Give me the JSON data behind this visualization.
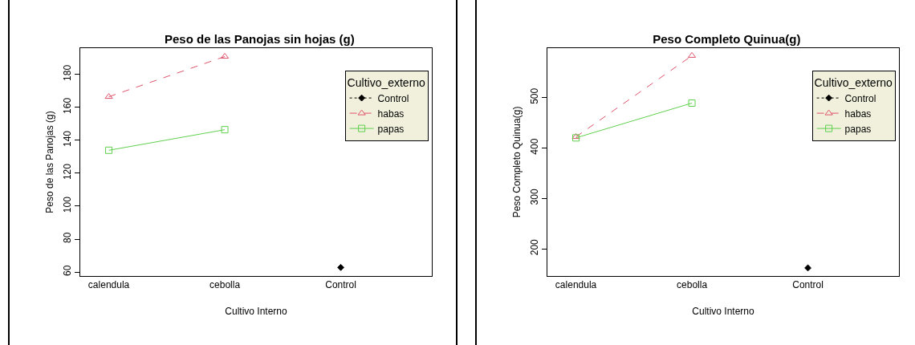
{
  "chart_data": [
    {
      "type": "line",
      "title": "Peso de las Panojas sin hojas (g)",
      "xlabel": "Cultivo Interno",
      "ylabel": "Peso de las Panojas (g)",
      "legend_title": "Cultivo_externo",
      "categories": [
        "calendula",
        "cebolla",
        "Control"
      ],
      "ylim": [
        57.6,
        195.9
      ],
      "yticks": [
        60,
        80,
        100,
        120,
        140,
        160,
        180
      ],
      "grid": false,
      "legend": "top right",
      "series": [
        {
          "name": "Control",
          "color": "#000000",
          "marker": "diamond",
          "line_style": "dotted",
          "values": [
            null,
            null,
            62.8
          ]
        },
        {
          "name": "habas",
          "color": "#df536b",
          "marker": "triangle",
          "line_style": "dashed",
          "values": [
            166.4,
            190.8,
            null
          ]
        },
        {
          "name": "papas",
          "color": "#61d04f",
          "marker": "square",
          "line_style": "solid",
          "values": [
            133.9,
            146.4,
            null
          ]
        }
      ]
    },
    {
      "type": "line",
      "title": "Peso Completo Quinua(g)",
      "xlabel": "Cultivo Interno",
      "ylabel": "Peso Completo Quinua(g)",
      "legend_title": "Cultivo_externo",
      "categories": [
        "calendula",
        "cebolla",
        "Control"
      ],
      "ylim": [
        146,
        598
      ],
      "yticks": [
        200,
        300,
        400,
        500
      ],
      "grid": false,
      "legend": "top right",
      "series": [
        {
          "name": "Control",
          "color": "#000000",
          "marker": "diamond",
          "line_style": "dotted",
          "values": [
            null,
            null,
            162
          ]
        },
        {
          "name": "habas",
          "color": "#df536b",
          "marker": "triangle",
          "line_style": "dashed",
          "values": [
            422,
            583,
            null
          ]
        },
        {
          "name": "papas",
          "color": "#61d04f",
          "marker": "square",
          "line_style": "solid",
          "values": [
            420,
            489,
            null
          ]
        }
      ]
    }
  ]
}
